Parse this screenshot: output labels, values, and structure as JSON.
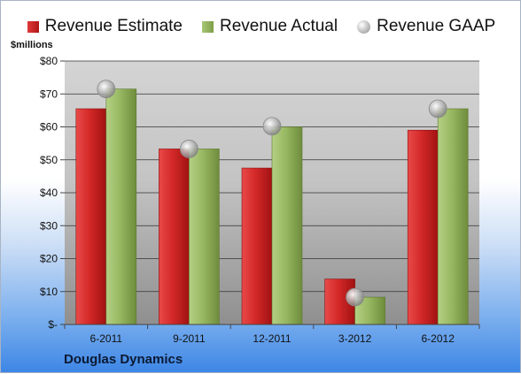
{
  "chart_data": {
    "type": "bar",
    "categories": [
      "6-2011",
      "9-2011",
      "12-2011",
      "3-2012",
      "6-2012"
    ],
    "series": [
      {
        "name": "Revenue Estimate",
        "kind": "bar",
        "color": "#c41e1e",
        "values": [
          65.5,
          53.3,
          47.5,
          13.8,
          59.0
        ]
      },
      {
        "name": "Revenue Actual",
        "kind": "bar",
        "color": "#8fb05a",
        "values": [
          71.5,
          53.3,
          60.0,
          8.3,
          65.5
        ]
      },
      {
        "name": "Revenue GAAP",
        "kind": "marker",
        "color": "#b0b0b0",
        "values": [
          71.5,
          53.3,
          60.2,
          8.3,
          65.5
        ]
      }
    ],
    "ylim": [
      0,
      80
    ],
    "yticks": [
      0,
      10,
      20,
      30,
      40,
      50,
      60,
      70,
      80
    ],
    "ytick_labels": [
      "$-",
      "$10",
      "$20",
      "$30",
      "$40",
      "$50",
      "$60",
      "$70",
      "$80"
    ],
    "ylabel": "$millions",
    "grid": true,
    "legend_position": "top"
  },
  "legend": {
    "estimate": "Revenue Estimate",
    "actual": "Revenue Actual",
    "gaap": "Revenue GAAP"
  },
  "units_label": "$millions",
  "company_name": "Douglas Dynamics"
}
